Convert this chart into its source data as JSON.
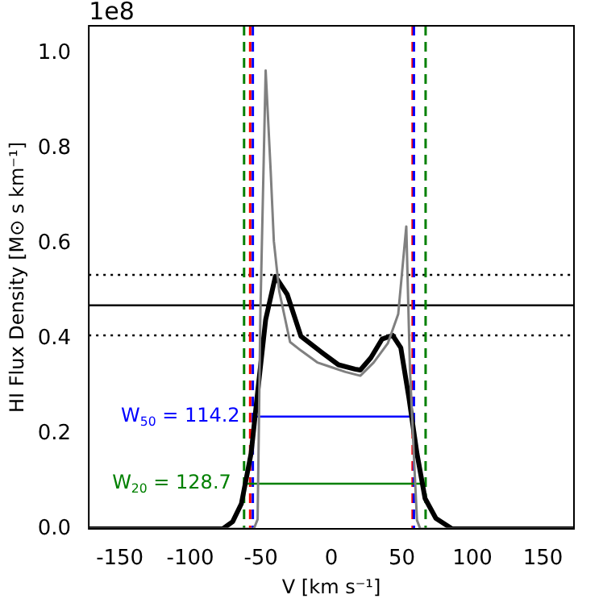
{
  "chart_data": {
    "type": "line",
    "xlabel": "V [km s⁻¹]",
    "ylabel": "HI Flux Density [M⊙ s km⁻¹]",
    "xlim": [
      -172,
      172
    ],
    "xticks": [
      -150,
      -100,
      -50,
      0,
      50,
      100,
      150
    ],
    "ylim": [
      0,
      1.058
    ],
    "yticks": [
      {
        "value": 0,
        "label": "0.0"
      },
      {
        "value": 0.2,
        "label": "0.2"
      },
      {
        "value": 0.4,
        "label": "0.4"
      },
      {
        "value": 0.6,
        "label": "0.6"
      },
      {
        "value": 0.8,
        "label": "0.8"
      },
      {
        "value": 1,
        "label": "1.0"
      }
    ],
    "grid": false,
    "legend": false,
    "marker": "none",
    "series": [
      {
        "color": "#808080",
        "x": [
          -172,
          -58,
          -55,
          -52.3,
          -50.3,
          -46.6,
          -43,
          -40.8,
          -37,
          -29.3,
          -21.6,
          -10,
          0,
          10,
          20.5,
          30,
          40,
          47.4,
          53.1,
          55.7,
          58.8,
          60.7,
          63,
          172
        ],
        "values": [
          0,
          0,
          0,
          0.02,
          0.46,
          0.964,
          0.75,
          0.605,
          0.5,
          0.393,
          0.375,
          0.35,
          0.34,
          0.33,
          0.322,
          0.35,
          0.39,
          0.452,
          0.636,
          0.335,
          0.134,
          0.018,
          0,
          0
        ]
      },
      {
        "color": "#000000",
        "x": [
          -172,
          -77,
          -70,
          -63.8,
          -56.9,
          -52.3,
          -46.6,
          -39.7,
          -31.3,
          -21.6,
          -6.3,
          5,
          16.7,
          20.5,
          28,
          35.9,
          43.4,
          49.2,
          55,
          60.7,
          66.4,
          74.1,
          85.6,
          172
        ],
        "values": [
          0,
          0,
          0.015,
          0.053,
          0.159,
          0.287,
          0.44,
          0.531,
          0.493,
          0.405,
          0.37,
          0.345,
          0.336,
          0.334,
          0.36,
          0.399,
          0.407,
          0.381,
          0.275,
          0.158,
          0.064,
          0.022,
          0,
          0
        ]
      },
      {
        "color": "#0000ff",
        "x": [
          -55.7,
          58.5
        ],
        "values": [
          0.236,
          0.236
        ]
      },
      {
        "color": "#008000",
        "x": [
          -61.9,
          66.8
        ],
        "values": [
          0.095,
          0.095
        ]
      }
    ],
    "ref_lines": [
      {
        "axis": "y",
        "value": 0.47,
        "color": "#000000",
        "line_style": "solid"
      },
      {
        "axis": "y",
        "value": 0.534,
        "color": "#000000",
        "line_style": "dotted"
      },
      {
        "axis": "y",
        "value": 0.407,
        "color": "#000000",
        "line_style": "dotted"
      },
      {
        "axis": "x",
        "value": -61.9,
        "color": "#008000",
        "line_style": "dashed"
      },
      {
        "axis": "x",
        "value": 66.8,
        "color": "#008000",
        "line_style": "dashed"
      },
      {
        "axis": "x",
        "value": -57.6,
        "color": "#ff0000",
        "line_style": "dashed"
      },
      {
        "axis": "x",
        "value": 57.6,
        "color": "#ff0000",
        "line_style": "dashed"
      },
      {
        "axis": "x",
        "value": -55.7,
        "color": "#0000ff",
        "line_style": "dashed"
      },
      {
        "axis": "x",
        "value": 58.5,
        "color": "#0000ff",
        "line_style": "dashed"
      }
    ],
    "annotations": [
      "1e8",
      "W$_{50}$ = 114.2",
      "W$_{20}$ = 128.7"
    ]
  }
}
